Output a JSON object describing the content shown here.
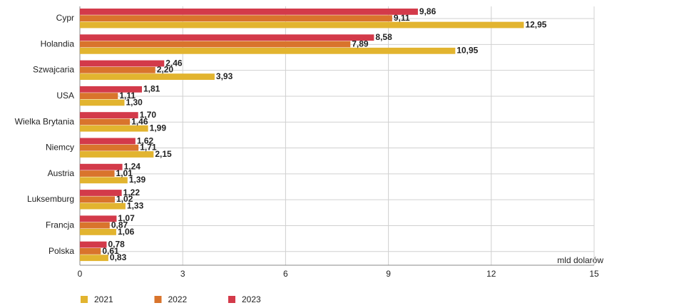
{
  "chart_data": {
    "type": "hbar",
    "categories": [
      "Cypr",
      "Holandia",
      "Szwajcaria",
      "USA",
      "Wielka Brytania",
      "Niemcy",
      "Austria",
      "Luksemburg",
      "Francja",
      "Polska"
    ],
    "series": [
      {
        "name": "2021",
        "color": "#e2b42f",
        "values": [
          12.95,
          10.95,
          3.93,
          1.3,
          1.99,
          2.15,
          1.39,
          1.33,
          1.06,
          0.83
        ],
        "value_labels": [
          "12,95",
          "10,95",
          "3,93",
          "1,30",
          "1,99",
          "2,15",
          "1,39",
          "1,33",
          "1,06",
          "0,83"
        ]
      },
      {
        "name": "2022",
        "color": "#d9742c",
        "values": [
          9.11,
          7.89,
          2.2,
          1.11,
          1.46,
          1.71,
          1.01,
          1.02,
          0.87,
          0.61
        ],
        "value_labels": [
          "9,11",
          "7,89",
          "2,20",
          "1,11",
          "1,46",
          "1,71",
          "1,01",
          "1,02",
          "0,87",
          "0,61"
        ]
      },
      {
        "name": "2023",
        "color": "#d33a4a",
        "values": [
          9.86,
          8.58,
          2.46,
          1.81,
          1.7,
          1.62,
          1.24,
          1.22,
          1.07,
          0.78
        ],
        "value_labels": [
          "9,86",
          "8,58",
          "2,46",
          "1,81",
          "1,70",
          "1,62",
          "1,24",
          "1,22",
          "1,07",
          "0,78"
        ]
      }
    ],
    "x_label": "mld dolarów",
    "xlim": [
      0,
      15
    ],
    "xticks": [
      0,
      3,
      6,
      9,
      12,
      15
    ],
    "grid": true
  }
}
